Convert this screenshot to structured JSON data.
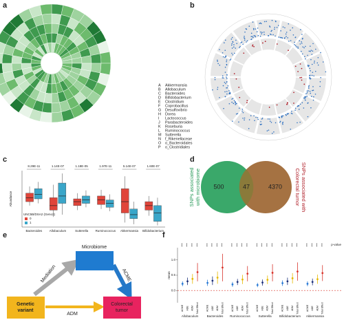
{
  "panel_labels": [
    "a",
    "b",
    "c",
    "d",
    "e",
    "f"
  ],
  "legend_a": [
    {
      "key": "A",
      "name": "Akkermansia"
    },
    {
      "key": "B",
      "name": "Allobaculum"
    },
    {
      "key": "C",
      "name": "Bacteroides"
    },
    {
      "key": "D",
      "name": "Bifidobacterium"
    },
    {
      "key": "E",
      "name": "Clostridium"
    },
    {
      "key": "F",
      "name": "Coprobacillus"
    },
    {
      "key": "G",
      "name": "Desulfovibrio"
    },
    {
      "key": "H",
      "name": "Dorea"
    },
    {
      "key": "I",
      "name": "Lactococcus"
    },
    {
      "key": "J",
      "name": "Parabacteroides"
    },
    {
      "key": "K",
      "name": "Roseburia"
    },
    {
      "key": "L",
      "name": "Ruminococcus"
    },
    {
      "key": "M",
      "name": "Sutterella"
    },
    {
      "key": "N",
      "name": "f_Rikenellaceae"
    },
    {
      "key": "O",
      "name": "o_Bacteroidales"
    },
    {
      "key": "P",
      "name": "o_Clostridiales"
    }
  ],
  "chart_data": [
    {
      "type": "box",
      "ylabel": "Abundance",
      "categories": [
        "Bacteroides",
        "Allobaculum",
        "Sutterella",
        "Ruminococcus",
        "Akkermansia",
        "Bifidobacterium"
      ],
      "pvalues": [
        "8.29E-11",
        "1.14E-07",
        "1.18E-05",
        "1.97E-11",
        "5.14E-07",
        "1.60E-07"
      ],
      "legend_title": "UNC5B/DSA2 (Geno3)",
      "ylim": [
        0,
        1
      ],
      "series": [
        {
          "name": "0",
          "color": "#e0453a",
          "min": [
            0.38,
            0.18,
            0.3,
            0.32,
            0.08,
            0.2
          ],
          "q1": [
            0.45,
            0.3,
            0.38,
            0.4,
            0.25,
            0.3
          ],
          "median": [
            0.52,
            0.38,
            0.45,
            0.48,
            0.45,
            0.38
          ],
          "q3": [
            0.6,
            0.52,
            0.5,
            0.55,
            0.68,
            0.45
          ],
          "max": [
            0.72,
            0.75,
            0.6,
            0.66,
            0.9,
            0.55
          ]
        },
        {
          "name": "1",
          "color": "#3aa6c9",
          "min": [
            0.42,
            0.22,
            0.35,
            0.28,
            0.05,
            0.03
          ],
          "q1": [
            0.5,
            0.42,
            0.42,
            0.35,
            0.15,
            0.1
          ],
          "median": [
            0.58,
            0.55,
            0.48,
            0.42,
            0.22,
            0.25
          ],
          "q3": [
            0.68,
            0.78,
            0.55,
            0.48,
            0.32,
            0.38
          ],
          "max": [
            0.8,
            0.95,
            0.65,
            0.58,
            0.45,
            0.52
          ]
        }
      ]
    },
    {
      "type": "errorbar",
      "ylabel": "mean",
      "categories": [
        "Allobaculum",
        "Bacteroides",
        "Ruminococcus",
        "Sutterella",
        "Bifidobacterium",
        "Akkermansia"
      ],
      "significance": [
        "***",
        "***",
        "***",
        "***",
        "***",
        "***"
      ],
      "pvalue_label": "p-value",
      "ylim": [
        -0.4,
        1.4
      ],
      "yticks": [
        {
          "value": 0,
          "label": "0.0"
        },
        0.5,
        {
          "value": 1,
          "label": "1.0"
        }
      ],
      "hline": 0,
      "series": [
        {
          "name": "ACME",
          "color": "#2b7bd6",
          "values": [
            0.22,
            0.25,
            0.2,
            0.18,
            0.24,
            0.22
          ],
          "errors": [
            0.08,
            0.1,
            0.08,
            0.07,
            0.09,
            0.08
          ]
        },
        {
          "name": "ADE",
          "color": "#1b2f7a",
          "values": [
            0.3,
            0.32,
            0.28,
            0.26,
            0.3,
            0.28
          ],
          "errors": [
            0.12,
            0.14,
            0.1,
            0.1,
            0.12,
            0.11
          ]
        },
        {
          "name": "ADM",
          "color": "#e6b800",
          "values": [
            0.38,
            0.42,
            0.36,
            0.35,
            0.4,
            0.37
          ],
          "errors": [
            0.16,
            0.2,
            0.15,
            0.14,
            0.17,
            0.15
          ]
        },
        {
          "name": "Total Effect",
          "color": "#d9342b",
          "values": [
            0.6,
            0.75,
            0.55,
            0.58,
            0.62,
            0.57
          ],
          "errors": [
            0.3,
            0.45,
            0.25,
            0.28,
            0.3,
            0.26
          ]
        }
      ]
    }
  ],
  "venn": {
    "left_label": [
      "SNPs associated",
      "with microbiome"
    ],
    "right_label": [
      "SNPs associated with",
      "Colorectal tumor"
    ],
    "left_only": 500,
    "overlap": 47,
    "right_only": 4370
  },
  "diagram": {
    "microbiome": "Microbiome",
    "genetic_variant": [
      "Genetic",
      "variant"
    ],
    "colorectal_tumor": [
      "Colorectal",
      "tumor"
    ],
    "mediation": "Mediation",
    "acme": "ACME",
    "adm": "ADM"
  }
}
